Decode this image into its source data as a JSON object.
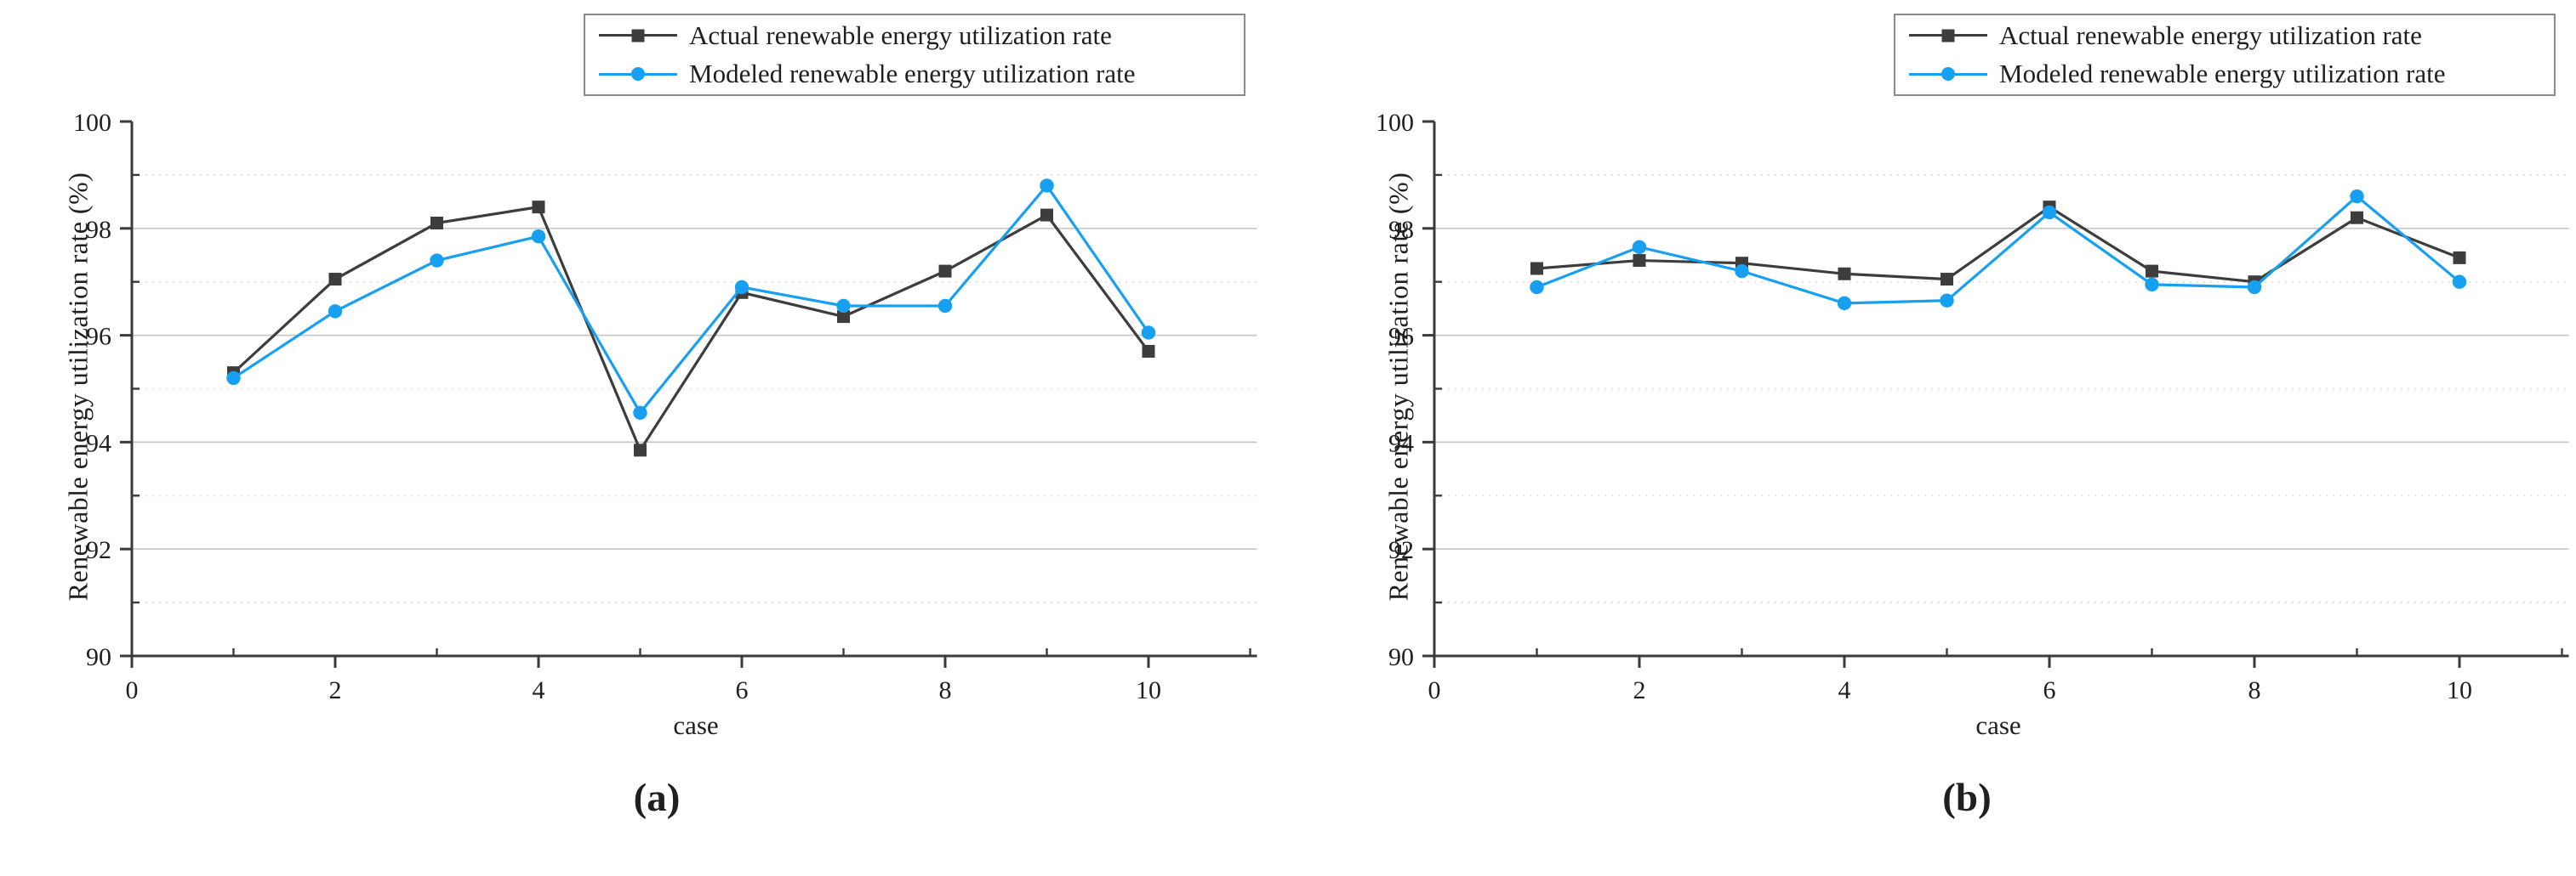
{
  "colors": {
    "actual": "#3d3d3d",
    "modeled": "#17a0f2",
    "axis": "#3a3a3a",
    "grid_major": "#c8c8c8",
    "grid_minor": "#e3e3e3",
    "legend_border": "#8a8a8a",
    "text": "#1f1f1f"
  },
  "legend": {
    "items": [
      {
        "label": "Actual renewable energy utilization rate",
        "marker": "square",
        "series": "actual"
      },
      {
        "label": "Modeled renewable energy utilization rate",
        "marker": "circle",
        "series": "modeled"
      }
    ]
  },
  "chart_data": [
    {
      "type": "line",
      "title": "(a)",
      "xlabel": "case",
      "ylabel": "Renewable energy utilization rate (%)",
      "x": [
        1,
        2,
        3,
        4,
        5,
        6,
        7,
        8,
        9,
        10
      ],
      "series": [
        {
          "name": "Actual renewable energy utilization rate",
          "marker": "square",
          "color_key": "actual",
          "values": [
            95.3,
            97.05,
            98.1,
            98.4,
            93.85,
            96.8,
            96.35,
            97.2,
            98.25,
            95.7
          ]
        },
        {
          "name": "Modeled renewable energy utilization rate",
          "marker": "circle",
          "color_key": "modeled",
          "values": [
            95.2,
            96.45,
            97.4,
            97.85,
            94.55,
            96.9,
            96.55,
            96.55,
            98.8,
            96.05
          ]
        }
      ],
      "xlim": [
        0,
        11
      ],
      "ylim": [
        90,
        100
      ],
      "x_ticks": [
        0,
        2,
        4,
        6,
        8,
        10
      ],
      "y_ticks": [
        90,
        92,
        94,
        96,
        98,
        100
      ],
      "grid": "horizontal",
      "legend_position": "top-right"
    },
    {
      "type": "line",
      "title": "(b)",
      "xlabel": "case",
      "ylabel": "Renewable energy utilization rate (%)",
      "x": [
        1,
        2,
        3,
        4,
        5,
        6,
        7,
        8,
        9,
        10
      ],
      "series": [
        {
          "name": "Actual renewable energy utilization rate",
          "marker": "square",
          "color_key": "actual",
          "values": [
            97.25,
            97.4,
            97.35,
            97.15,
            97.05,
            98.4,
            97.2,
            97.0,
            98.2,
            97.45
          ]
        },
        {
          "name": "Modeled renewable energy utilization rate",
          "marker": "circle",
          "color_key": "modeled",
          "values": [
            96.9,
            97.65,
            97.2,
            96.6,
            96.65,
            98.3,
            96.95,
            96.9,
            98.6,
            97.0
          ]
        }
      ],
      "xlim": [
        0,
        11
      ],
      "ylim": [
        90,
        100
      ],
      "x_ticks": [
        0,
        2,
        4,
        6,
        8,
        10
      ],
      "y_ticks": [
        90,
        92,
        94,
        96,
        98,
        100
      ],
      "grid": "horizontal",
      "legend_position": "top-right"
    }
  ]
}
